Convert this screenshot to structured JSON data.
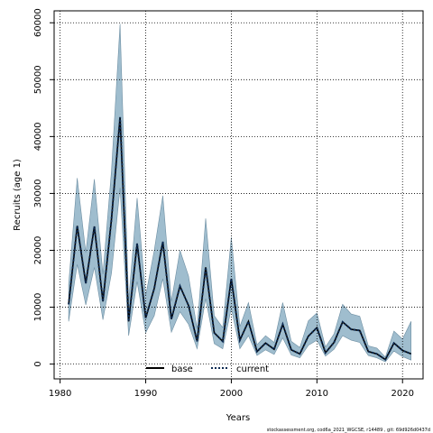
{
  "chart_data": {
    "type": "line",
    "xlabel": "Years",
    "ylabel": "Recruits (age 1)",
    "xlim": [
      1979.3,
      2022.4
    ],
    "ylim": [
      -2600,
      62100
    ],
    "x_ticks": [
      1980,
      1990,
      2000,
      2010,
      2020
    ],
    "y_ticks": [
      0,
      10000,
      20000,
      30000,
      40000,
      50000,
      60000
    ],
    "grid": true,
    "legend": {
      "position": "bottom-center",
      "entries": [
        "base",
        "current"
      ]
    },
    "footer": "stockassessment.org, cod6a_2021_WGCSE, r14489 , git: 69d926d0437d",
    "x": [
      1981,
      1982,
      1983,
      1984,
      1985,
      1986,
      1987,
      1988,
      1989,
      1990,
      1991,
      1992,
      1993,
      1994,
      1995,
      1996,
      1997,
      1998,
      1999,
      2000,
      2001,
      2002,
      2003,
      2004,
      2005,
      2006,
      2007,
      2008,
      2009,
      2010,
      2011,
      2012,
      2013,
      2014,
      2015,
      2016,
      2017,
      2018,
      2019,
      2020,
      2021
    ],
    "series": [
      {
        "name": "base",
        "style": "solid",
        "color": "#000000",
        "values": [
          10500,
          24300,
          14200,
          24200,
          11000,
          25500,
          43400,
          7500,
          21200,
          8100,
          13300,
          21500,
          7900,
          13700,
          10300,
          4000,
          17000,
          5500,
          4000,
          15000,
          4200,
          7500,
          2200,
          3700,
          2600,
          7000,
          2500,
          1800,
          4900,
          6400,
          2000,
          3800,
          7400,
          6100,
          5900,
          2200,
          1800,
          800,
          3700,
          2400,
          1800
        ]
      },
      {
        "name": "current",
        "style": "dotted",
        "color": "#0d2a52",
        "values": [
          10500,
          24300,
          14200,
          24200,
          11000,
          25500,
          43400,
          7500,
          21200,
          8100,
          13300,
          21500,
          7900,
          13700,
          10300,
          4000,
          17000,
          5500,
          4000,
          15000,
          4200,
          7500,
          2200,
          3700,
          2600,
          7000,
          2500,
          1800,
          4900,
          6400,
          2000,
          3800,
          7400,
          6100,
          5900,
          2200,
          1800,
          800,
          3700,
          2400,
          1800
        ]
      }
    ],
    "confidence_band": {
      "color": "#7fa7bd",
      "lower": [
        7500,
        17500,
        10400,
        17000,
        7800,
        16000,
        31000,
        5000,
        14500,
        5500,
        8500,
        15000,
        5600,
        9200,
        7000,
        2700,
        11500,
        3600,
        2700,
        9800,
        2700,
        5000,
        1500,
        2500,
        1700,
        4600,
        1600,
        1100,
        3300,
        4200,
        1400,
        2600,
        5000,
        4200,
        3800,
        1500,
        1100,
        400,
        2300,
        1300,
        700
      ],
      "upper": [
        14000,
        32700,
        19600,
        32500,
        15800,
        34000,
        59800,
        11000,
        29200,
        12000,
        20000,
        29600,
        11000,
        20000,
        15500,
        6200,
        25600,
        8500,
        6400,
        22300,
        6600,
        10800,
        3400,
        5000,
        3800,
        10800,
        4000,
        2900,
        7600,
        9000,
        3000,
        5300,
        10500,
        8800,
        8400,
        3200,
        2800,
        1200,
        5800,
        4400,
        7500
      ]
    }
  }
}
